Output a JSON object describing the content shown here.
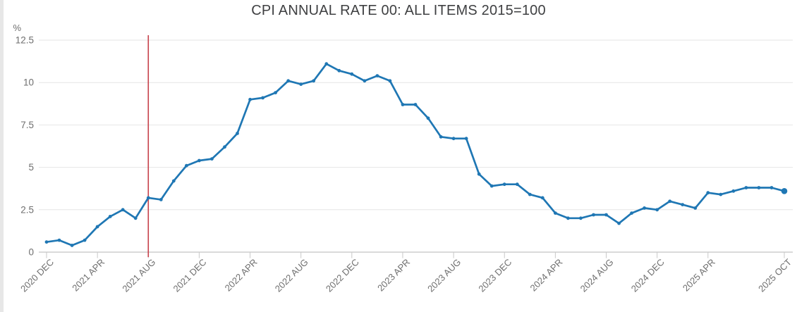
{
  "chart_data": {
    "type": "line",
    "title": "CPI ANNUAL RATE 00: ALL ITEMS 2015=100",
    "ylabel": "%",
    "ylim": [
      0,
      12.5
    ],
    "yticks": [
      0,
      2.5,
      5,
      7.5,
      10,
      12.5
    ],
    "grid": true,
    "legend_position": "none",
    "x": [
      "2020 DEC",
      "2021 JAN",
      "2021 FEB",
      "2021 MAR",
      "2021 APR",
      "2021 MAY",
      "2021 JUN",
      "2021 JUL",
      "2021 AUG",
      "2021 SEP",
      "2021 OCT",
      "2021 NOV",
      "2021 DEC",
      "2022 JAN",
      "2022 FEB",
      "2022 MAR",
      "2022 APR",
      "2022 MAY",
      "2022 JUN",
      "2022 JUL",
      "2022 AUG",
      "2022 SEP",
      "2022 OCT",
      "2022 NOV",
      "2022 DEC",
      "2023 JAN",
      "2023 FEB",
      "2023 MAR",
      "2023 APR",
      "2023 MAY",
      "2023 JUN",
      "2023 JUL",
      "2023 AUG",
      "2023 SEP",
      "2023 OCT",
      "2023 NOV",
      "2023 DEC",
      "2024 JAN",
      "2024 FEB",
      "2024 MAR",
      "2024 APR",
      "2024 MAY",
      "2024 JUN",
      "2024 JUL",
      "2024 AUG",
      "2024 SEP",
      "2024 OCT",
      "2024 NOV",
      "2024 DEC",
      "2025 JAN",
      "2025 FEB",
      "2025 MAR",
      "2025 APR",
      "2025 MAY",
      "2025 JUN",
      "2025 JUL",
      "2025 AUG",
      "2025 SEP",
      "2025 OCT"
    ],
    "series": [
      {
        "name": "CPI annual rate all items",
        "values": [
          0.6,
          0.7,
          0.4,
          0.7,
          1.5,
          2.1,
          2.5,
          2.0,
          3.2,
          3.1,
          4.2,
          5.1,
          5.4,
          5.5,
          6.2,
          7.0,
          9.0,
          9.1,
          9.4,
          10.1,
          9.9,
          10.1,
          11.1,
          10.7,
          10.5,
          10.1,
          10.4,
          10.1,
          8.7,
          8.7,
          7.9,
          6.8,
          6.7,
          6.7,
          4.6,
          3.9,
          4.0,
          4.0,
          3.4,
          3.2,
          2.3,
          2.0,
          2.0,
          2.2,
          2.2,
          1.7,
          2.3,
          2.6,
          2.5,
          3.0,
          2.8,
          2.6,
          3.5,
          3.4,
          3.6,
          3.8,
          3.8,
          3.8,
          3.6
        ]
      }
    ],
    "x_tick_labels": [
      "2020 DEC",
      "2021 APR",
      "2021 AUG",
      "2021 DEC",
      "2022 APR",
      "2022 AUG",
      "2022 DEC",
      "2023 APR",
      "2023 AUG",
      "2023 DEC",
      "2024 APR",
      "2024 AUG",
      "2024 DEC",
      "2025 APR",
      "2025 OCT"
    ],
    "reference_line": {
      "x_label": "2021 AUG",
      "color": "#c64049"
    }
  },
  "colors": {
    "line": "#1f77b4",
    "reference_line": "#c64049",
    "grid": "#e6e6e6",
    "axis": "#b4b4b4",
    "tick": "#c9c9c9",
    "axis_text": "#6f6f6f",
    "title_text": "#3f4042",
    "page_edge_strip": "#e7e7e7"
  }
}
